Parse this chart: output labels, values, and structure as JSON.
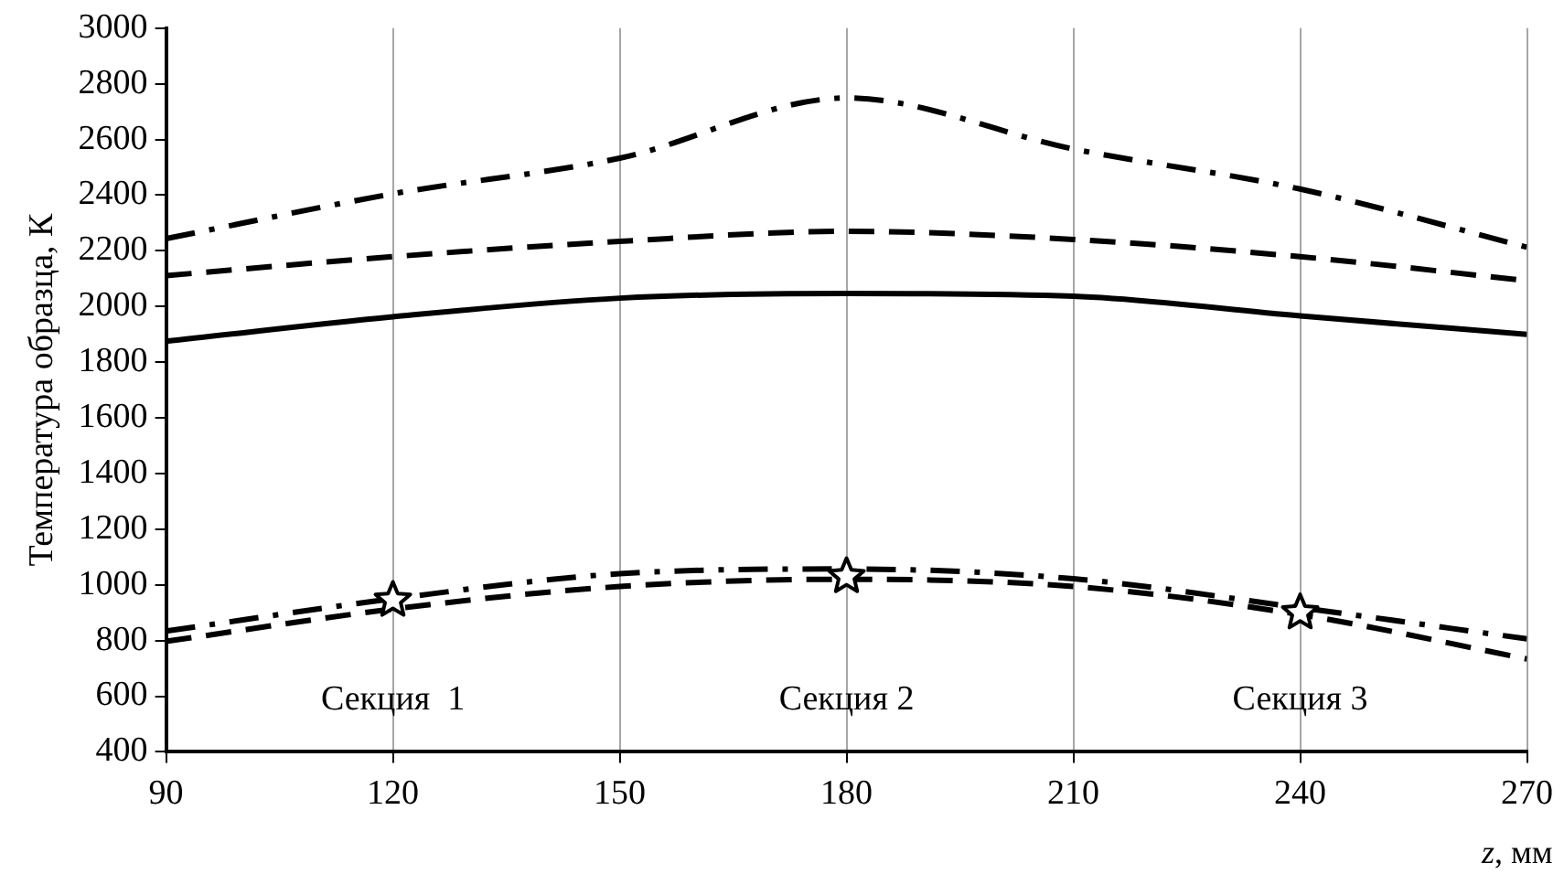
{
  "chart_data": {
    "type": "line",
    "xlabel": "z, мм",
    "ylabel": "Температура образца, К",
    "xlim": [
      90,
      270
    ],
    "xticks": [
      90,
      120,
      150,
      180,
      210,
      240,
      270
    ],
    "ylim": [
      400,
      3000
    ],
    "yticks": [
      400,
      600,
      800,
      1000,
      1200,
      1400,
      1600,
      1800,
      2000,
      2200,
      2400,
      2600,
      2800,
      3000
    ],
    "grid": "x",
    "legend": false,
    "series": [
      {
        "color": "#000000",
        "line_style": "dashdot",
        "x": [
          90,
          120,
          150,
          180,
          210,
          240,
          270
        ],
        "values": [
          2244,
          2405,
          2533,
          2749,
          2566,
          2422,
          2213
        ]
      },
      {
        "color": "#000000",
        "line_style": "dashed",
        "x": [
          90,
          120,
          150,
          180,
          210,
          240,
          270
        ],
        "values": [
          2111,
          2179,
          2234,
          2270,
          2241,
          2179,
          2093
        ]
      },
      {
        "color": "#000000",
        "line_style": "solid",
        "x": [
          90,
          120,
          150,
          180,
          210,
          240,
          270
        ],
        "values": [
          1875,
          1963,
          2030,
          2047,
          2037,
          1966,
          1900
        ]
      },
      {
        "color": "#000000",
        "line_style": "dashdot",
        "x": [
          90,
          120,
          150,
          180,
          210,
          240,
          270
        ],
        "values": [
          834,
          950,
          1040,
          1057,
          1022,
          918,
          806
        ]
      },
      {
        "color": "#000000",
        "line_style": "dashed",
        "x": [
          90,
          120,
          150,
          180,
          210,
          240,
          270
        ],
        "values": [
          797,
          913,
          994,
          1020,
          994,
          893,
          734
        ]
      },
      {
        "type": "scatter",
        "color": "#000000",
        "marker": "star",
        "x": [
          120,
          180,
          240
        ],
        "values": [
          945,
          1030,
          900
        ]
      }
    ],
    "annotations": [
      "Секция  1",
      "Секция 2",
      "Секция 3"
    ]
  }
}
